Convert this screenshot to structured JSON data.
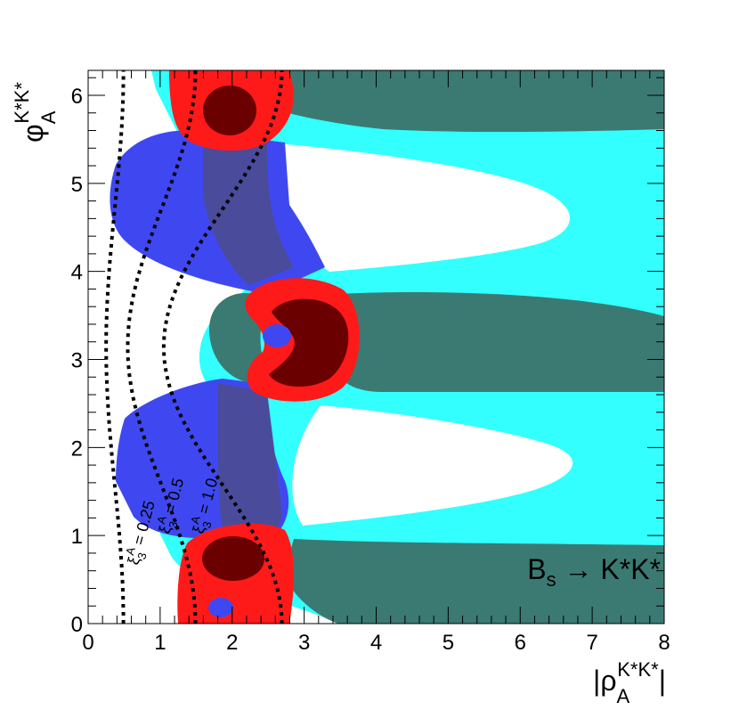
{
  "chart_data": {
    "type": "contour",
    "xlim": [
      0,
      8
    ],
    "ylim": [
      0,
      6.2832
    ],
    "x_ticks": [
      "0",
      "1",
      "2",
      "3",
      "4",
      "5",
      "6",
      "7",
      "8"
    ],
    "y_ticks": [
      "0",
      "1",
      "2",
      "3",
      "4",
      "5",
      "6"
    ],
    "xlabel": "|ρA^{K*K*}|",
    "ylabel": "φA^{K*K*}",
    "xlabel_parts": {
      "main": "|ρ",
      "sub": "A",
      "sup": "K*K*",
      "tail": "|"
    },
    "ylabel_parts": {
      "main": "φ",
      "sub": "A",
      "sup": "K*K*"
    },
    "annotation": "B_s → K*K*",
    "annotation_parts": {
      "main": "B",
      "sub": "s",
      "rest": " → K*K*"
    },
    "colors": {
      "cyan": "#33ffff",
      "teal": "#3b7a72",
      "blue": "#3f48f0",
      "slate": "#4b4b9c",
      "red": "#ff1a1a",
      "darkred": "#6a0000",
      "contour": "#000000"
    },
    "regions": [
      {
        "name": "cyan",
        "description": "outer allowed band"
      },
      {
        "name": "teal",
        "description": "inner allowed band"
      },
      {
        "name": "blue",
        "description": "outer constraint band"
      },
      {
        "name": "slate",
        "description": "overlap region"
      },
      {
        "name": "red",
        "description": "combined allowed region"
      },
      {
        "name": "darkred",
        "description": "combined core region"
      }
    ],
    "contours": [
      {
        "label": "ξ3A = 0.25",
        "label_parts": {
          "xi": "ξ",
          "sub": "3",
          "sup": "A",
          "value": " = 0.25"
        },
        "x_at_pi": 0.25
      },
      {
        "label": "ξ3A = 0.5",
        "label_parts": {
          "xi": "ξ",
          "sub": "3",
          "sup": "A",
          "value": " = 0.5"
        },
        "x_at_pi": 0.55
      },
      {
        "label": "ξ3A = 1.0",
        "label_parts": {
          "xi": "ξ",
          "sub": "3",
          "sup": "A",
          "value": " = 1.0"
        },
        "x_at_pi": 1.05
      }
    ]
  }
}
